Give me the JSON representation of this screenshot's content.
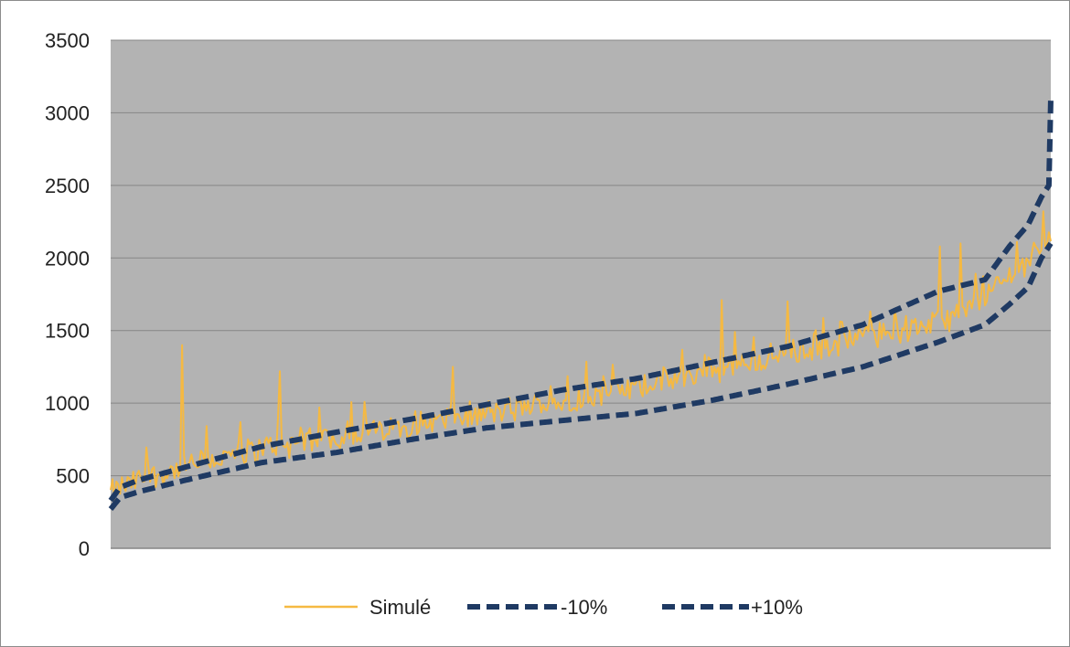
{
  "chart_data": {
    "type": "line",
    "title": "",
    "xlabel": "",
    "ylabel": "",
    "ylim": [
      0,
      3500
    ],
    "yticks": [
      0,
      500,
      1000,
      1500,
      2000,
      2500,
      3000,
      3500
    ],
    "x_count": 500,
    "grid": "horizontal",
    "plot_background": "#b3b3b3",
    "legend": {
      "position": "bottom"
    },
    "series": [
      {
        "name": "Simulé",
        "color": "#f5b942",
        "style": "solid",
        "anchors_x": [
          0,
          15,
          40,
          80,
          120,
          160,
          200,
          240,
          280,
          320,
          360,
          400,
          440,
          455,
          470,
          485,
          495,
          500
        ],
        "anchors_y": [
          380,
          470,
          560,
          690,
          770,
          850,
          930,
          1010,
          1110,
          1220,
          1340,
          1450,
          1560,
          1630,
          1790,
          1950,
          2100,
          2150
        ],
        "noise": 90,
        "spikes": [
          {
            "x": 38,
            "y": 1400
          },
          {
            "x": 90,
            "y": 1220
          },
          {
            "x": 182,
            "y": 1250
          },
          {
            "x": 325,
            "y": 1710
          },
          {
            "x": 360,
            "y": 1700
          },
          {
            "x": 441,
            "y": 2080
          },
          {
            "x": 452,
            "y": 2100
          },
          {
            "x": 482,
            "y": 2110
          }
        ]
      },
      {
        "name": "-10%",
        "color": "#1f3a63",
        "style": "dashed",
        "anchors_x": [
          0,
          5,
          15,
          40,
          80,
          120,
          160,
          200,
          240,
          280,
          320,
          360,
          400,
          440,
          465,
          478,
          488,
          495,
          500
        ],
        "anchors_y": [
          270,
          350,
          390,
          470,
          590,
          660,
          750,
          830,
          880,
          930,
          1020,
          1130,
          1250,
          1420,
          1540,
          1680,
          1800,
          2000,
          2100
        ]
      },
      {
        "name": "+10%",
        "color": "#1f3a63",
        "style": "dashed",
        "anchors_x": [
          0,
          5,
          15,
          40,
          80,
          120,
          160,
          200,
          240,
          280,
          320,
          360,
          400,
          440,
          465,
          478,
          488,
          495,
          499,
          500
        ],
        "anchors_y": [
          330,
          420,
          470,
          560,
          700,
          800,
          890,
          990,
          1090,
          1170,
          1280,
          1390,
          1540,
          1770,
          1850,
          2080,
          2230,
          2420,
          2500,
          3100
        ]
      }
    ]
  }
}
